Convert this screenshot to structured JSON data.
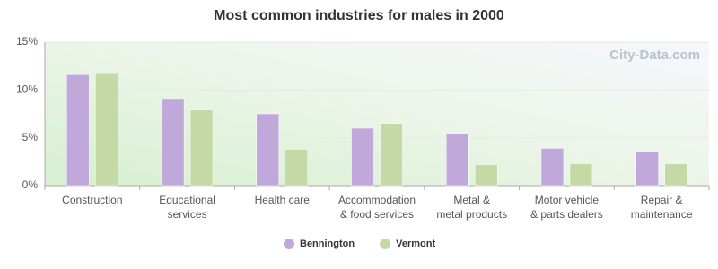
{
  "chart_data": {
    "type": "bar",
    "title": "Most common industries for males in 2000",
    "watermark": "City-Data.com",
    "categories": [
      "Construction",
      "Educational\nservices",
      "Health care",
      "Accommodation\n& food services",
      "Metal &\nmetal products",
      "Motor vehicle\n& parts dealers",
      "Repair &\nmaintenance"
    ],
    "series": [
      {
        "name": "Bennington",
        "color": "#c0a8da",
        "values": [
          11.6,
          9.1,
          7.5,
          6.0,
          5.4,
          3.9,
          3.5
        ]
      },
      {
        "name": "Vermont",
        "color": "#c5d9a6",
        "values": [
          11.8,
          7.9,
          3.8,
          6.5,
          2.2,
          2.3,
          2.3
        ]
      }
    ],
    "ylim": [
      0,
      15
    ],
    "yticks": [
      {
        "value": 0,
        "label": "0%"
      },
      {
        "value": 5,
        "label": "5%"
      },
      {
        "value": 10,
        "label": "10%"
      },
      {
        "value": 15,
        "label": "15%"
      }
    ],
    "grid": true
  }
}
